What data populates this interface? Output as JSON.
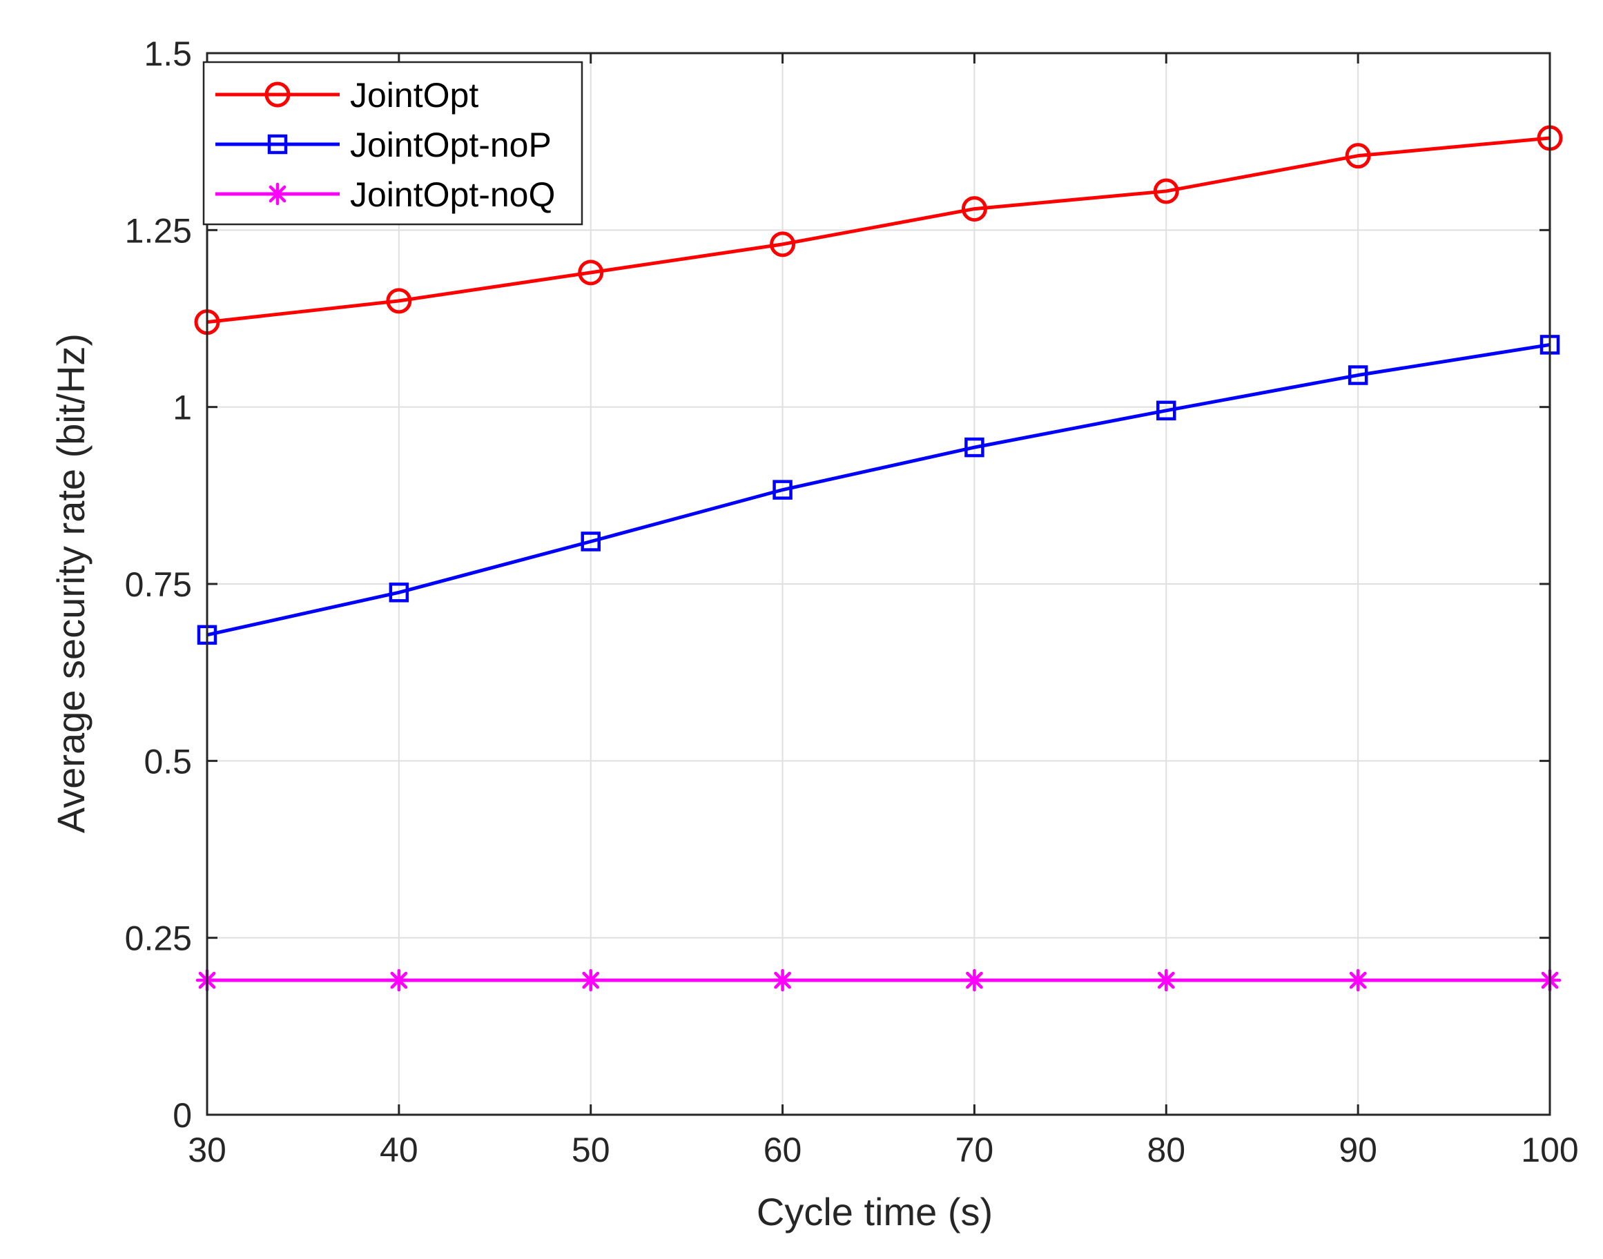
{
  "chart_data": {
    "type": "line",
    "title": "",
    "xlabel": "Cycle time (s)",
    "ylabel": "Average security rate (bit/Hz)",
    "x": [
      30,
      40,
      50,
      60,
      70,
      80,
      90,
      100
    ],
    "xlim": [
      30,
      100
    ],
    "ylim": [
      0,
      1.5
    ],
    "xticks": [
      30,
      40,
      50,
      60,
      70,
      80,
      90,
      100
    ],
    "xtick_labels": [
      "30",
      "40",
      "50",
      "60",
      "70",
      "80",
      "90",
      "100"
    ],
    "yticks": [
      0,
      0.25,
      0.5,
      0.75,
      1,
      1.25,
      1.5
    ],
    "ytick_labels": [
      "0",
      "0.25",
      "0.5",
      "0.75",
      "1",
      "1.25",
      "1.5"
    ],
    "grid": true,
    "legend_position": "top-left",
    "series": [
      {
        "name": "JointOpt",
        "color": "#ff0000",
        "marker": "circle",
        "values": [
          1.12,
          1.15,
          1.19,
          1.23,
          1.28,
          1.305,
          1.355,
          1.38
        ]
      },
      {
        "name": "JointOpt-noP",
        "color": "#0000ff",
        "marker": "square",
        "values": [
          0.678,
          0.738,
          0.81,
          0.883,
          0.943,
          0.995,
          1.045,
          1.088
        ]
      },
      {
        "name": "JointOpt-noQ",
        "color": "#ff00ff",
        "marker": "asterisk",
        "values": [
          0.19,
          0.19,
          0.19,
          0.19,
          0.19,
          0.19,
          0.19,
          0.19
        ]
      }
    ]
  }
}
